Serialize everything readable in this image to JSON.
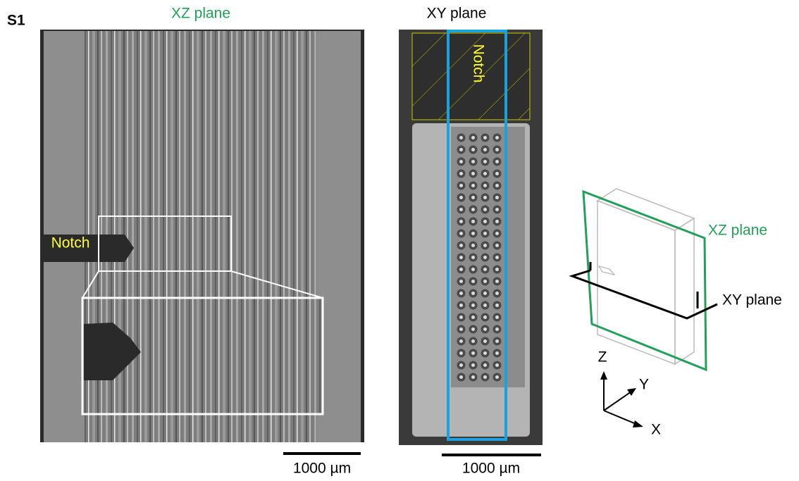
{
  "panel_label": "S1",
  "xz_view": {
    "title": "XZ plane",
    "notch_label": "Notch",
    "scale_bar": "1000 µm"
  },
  "xy_view": {
    "title": "XY plane",
    "notch_label": "Notch",
    "scale_bar": "1000 µm"
  },
  "schematic": {
    "xz_plane_label": "XZ plane",
    "xy_plane_label": "XY plane",
    "axes": {
      "z": "Z",
      "y": "Y",
      "x": "X"
    }
  }
}
